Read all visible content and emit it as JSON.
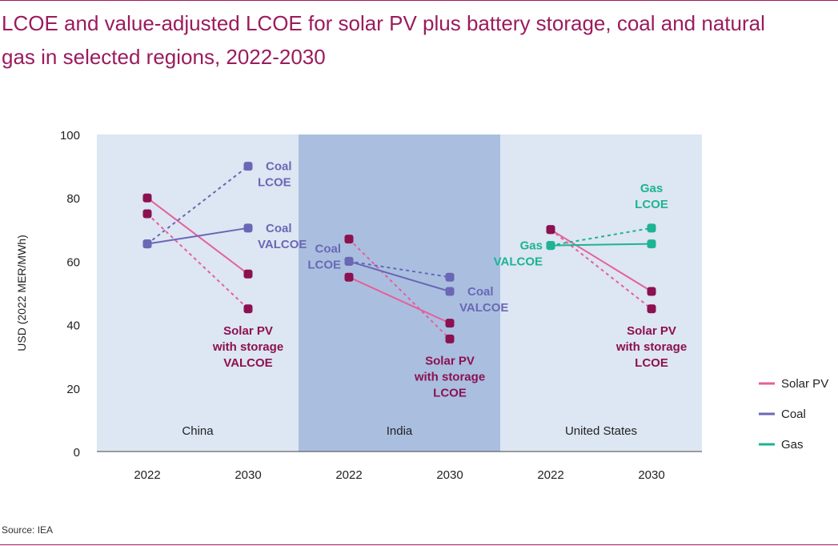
{
  "title": "LCOE and value-adjusted LCOE for solar PV plus battery storage, coal and natural gas in selected regions, 2022-2030",
  "source": "Source: IEA",
  "colors": {
    "solar_line": "#e5609a",
    "solar_marker": "#8c1150",
    "coal": "#6a67b5",
    "gas": "#1db394",
    "panel": "#dde6f3",
    "panel_highlight": "#aabfe0",
    "title": "#9b1b5d"
  },
  "chart_data": {
    "type": "line",
    "ylabel": "USD (2022 MER/MWh)",
    "ylim": [
      0,
      100
    ],
    "yticks": [
      "0",
      "20",
      "40",
      "60",
      "80",
      "100"
    ],
    "x": [
      "2022",
      "2030"
    ],
    "legend": {
      "position": "right",
      "entries": [
        "Solar PV",
        "Coal",
        "Gas"
      ]
    },
    "panels": [
      {
        "region": "China",
        "highlight": false,
        "series": [
          {
            "tech": "solar",
            "metric": "lcoe",
            "style": "dashed",
            "values": [
              75,
              45
            ]
          },
          {
            "tech": "solar",
            "metric": "valcoe",
            "style": "solid",
            "values": [
              80,
              56
            ]
          },
          {
            "tech": "coal",
            "metric": "lcoe",
            "style": "dashed",
            "values": [
              65.5,
              90
            ]
          },
          {
            "tech": "coal",
            "metric": "valcoe",
            "style": "solid",
            "values": [
              65.5,
              70.5
            ]
          }
        ],
        "annotations": [
          {
            "text": "Coal\nLCOE",
            "tech": "coal",
            "at": [
              2030,
              90
            ],
            "pos": "right"
          },
          {
            "text": "Coal\nVALCOE",
            "tech": "coal",
            "at": [
              2030,
              70.5
            ],
            "pos": "right"
          },
          {
            "text": "Solar PV\nwith storage\nVALCOE",
            "tech": "solar",
            "at": [
              2030,
              45
            ],
            "pos": "below"
          }
        ]
      },
      {
        "region": "India",
        "highlight": true,
        "series": [
          {
            "tech": "solar",
            "metric": "lcoe",
            "style": "dashed",
            "values": [
              67,
              35.5
            ]
          },
          {
            "tech": "solar",
            "metric": "valcoe",
            "style": "solid",
            "values": [
              55,
              40.5
            ]
          },
          {
            "tech": "coal",
            "metric": "lcoe",
            "style": "dashed",
            "values": [
              60,
              55
            ]
          },
          {
            "tech": "coal",
            "metric": "valcoe",
            "style": "solid",
            "values": [
              60,
              50.5
            ]
          }
        ],
        "annotations": [
          {
            "text": "Coal\nLCOE",
            "tech": "coal",
            "at": [
              2022,
              60
            ],
            "pos": "left"
          },
          {
            "text": "Coal\nVALCOE",
            "tech": "coal",
            "at": [
              2030,
              50.5
            ],
            "pos": "right"
          },
          {
            "text": "Solar PV\nwith storage\nLCOE",
            "tech": "solar",
            "at": [
              2030,
              35.5
            ],
            "pos": "below"
          }
        ]
      },
      {
        "region": "United States",
        "highlight": false,
        "series": [
          {
            "tech": "solar",
            "metric": "lcoe",
            "style": "dashed",
            "values": [
              70,
              45
            ]
          },
          {
            "tech": "solar",
            "metric": "valcoe",
            "style": "solid",
            "values": [
              70,
              50.5
            ]
          },
          {
            "tech": "gas",
            "metric": "lcoe",
            "style": "dashed",
            "values": [
              65,
              70.5
            ]
          },
          {
            "tech": "gas",
            "metric": "valcoe",
            "style": "solid",
            "values": [
              65,
              65.5
            ]
          }
        ],
        "annotations": [
          {
            "text": "Gas\nLCOE",
            "tech": "gas",
            "at": [
              2030,
              70.5
            ],
            "pos": "above"
          },
          {
            "text": "Gas\nVALCOE",
            "tech": "gas",
            "at": [
              2022,
              65
            ],
            "pos": "left"
          },
          {
            "text": "Solar PV\nwith storage\nLCOE",
            "tech": "solar",
            "at": [
              2030,
              45
            ],
            "pos": "below"
          }
        ]
      }
    ]
  }
}
